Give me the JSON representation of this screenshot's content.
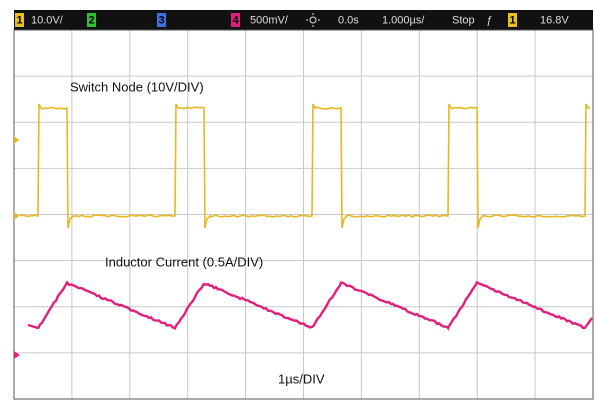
{
  "status_bar": {
    "ch1_num": "1",
    "ch1_scale": "10.0V/",
    "ch2_num": "2",
    "ch3_num": "3",
    "ch4_num": "4",
    "ch4_scale": "500mV/",
    "delay": "0.0s",
    "timebase": "1.000µs/",
    "run_state": "Stop",
    "trigger_symbol": "ƒ",
    "trigger_ch": "1",
    "trigger_level": "16.8V"
  },
  "annotations": {
    "switch_node": "Switch Node (10V/DIV)",
    "inductor_current": "Inductor Current (0.5A/DIV)",
    "timebase": "1µs/DIV"
  }
}
